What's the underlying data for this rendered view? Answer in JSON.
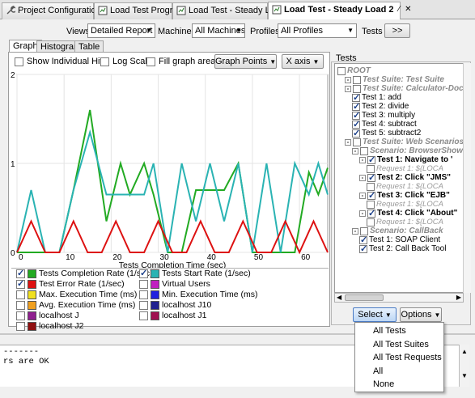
{
  "editor_tabs": [
    "Project Configuration",
    "Load Test Progress",
    "Load Test - Steady Load",
    "Load Test - Steady Load 2"
  ],
  "filter": {
    "views_label": "Views",
    "views_value": "Detailed Report",
    "machines_label": "Machines",
    "machines_value": "All Machines",
    "profiles_label": "Profiles",
    "profiles_value": "All Profiles",
    "tests_label": "Tests",
    "tests_button": ">>"
  },
  "subtabs": [
    "Graph",
    "Histogram",
    "Table"
  ],
  "graph_options": {
    "show_hits": "Show Individual Hits",
    "log_scale": "Log Scale",
    "fill_areas": "Fill graph areas",
    "graph_points": "Graph Points",
    "x_axis": "X axis"
  },
  "tests_panel_label": "Tests",
  "legend": [
    {
      "label": "Tests Completion Rate (1/sec)",
      "checked": true,
      "color": "#22aa22"
    },
    {
      "label": "Tests Start Rate (1/sec)",
      "checked": true,
      "color": "#2ab3b3"
    },
    {
      "label": "Test Error Rate (1/sec)",
      "checked": true,
      "color": "#dd1111"
    },
    {
      "label": "Virtual Users",
      "checked": false,
      "color": "#c020c0"
    },
    {
      "label": "Max. Execution Time (ms)",
      "checked": false,
      "color": "#f0e020"
    },
    {
      "label": "Min. Execution Time (ms)",
      "checked": false,
      "color": "#2020e0"
    },
    {
      "label": "Avg. Execution Time (ms)",
      "checked": false,
      "color": "#f0a020"
    },
    {
      "label": "localhost J10",
      "checked": false,
      "color": "#202090"
    },
    {
      "label": "localhost J",
      "checked": false,
      "color": "#902090"
    },
    {
      "label": "localhost J1",
      "checked": false,
      "color": "#a01050"
    },
    {
      "label": "localhost J2",
      "checked": false,
      "color": "#901010"
    }
  ],
  "chart_data": {
    "type": "line",
    "xlabel": "Tests Completion Time (sec)",
    "xlim": [
      0,
      66
    ],
    "ylim": [
      0,
      2
    ],
    "xticks": [
      0,
      10,
      20,
      30,
      40,
      50,
      60
    ],
    "yticks": [
      0,
      1,
      2
    ],
    "grid": true,
    "series": [
      {
        "name": "Tests Completion Rate (1/sec)",
        "color": "#22aa22",
        "x": [
          0,
          3,
          6,
          9,
          12,
          15.5,
          19,
          22,
          24,
          27,
          29,
          32,
          35,
          38,
          41,
          44,
          47,
          50,
          53,
          56,
          59,
          62,
          64,
          66
        ],
        "y": [
          0,
          0,
          0,
          0,
          0.7,
          1.6,
          0.35,
          1.0,
          0.65,
          1.0,
          0.65,
          0,
          0,
          0.7,
          0.7,
          0.7,
          1.0,
          0,
          0,
          0,
          0,
          0.9,
          0.65,
          0.95
        ]
      },
      {
        "name": "Tests Start Rate (1/sec)",
        "color": "#2ab3b3",
        "x": [
          0,
          3,
          6,
          9,
          12,
          15.5,
          19,
          22,
          24,
          27,
          29,
          32,
          35,
          38,
          41,
          44,
          47,
          50,
          53,
          56,
          59,
          62,
          64,
          66
        ],
        "y": [
          0,
          0.7,
          0,
          0,
          0.7,
          1.35,
          0.65,
          0.65,
          0.65,
          0.65,
          1.0,
          0,
          1.0,
          0.35,
          1.0,
          0.35,
          1.0,
          0,
          1.0,
          0,
          1.0,
          0.65,
          1.0,
          0.65
        ]
      },
      {
        "name": "Test Error Rate (1/sec)",
        "color": "#dd1111",
        "x": [
          0,
          3,
          6,
          9,
          12,
          15,
          18,
          21,
          24,
          27,
          30,
          33,
          36,
          39,
          42,
          45,
          48,
          51,
          54,
          57,
          60,
          63,
          66
        ],
        "y": [
          0,
          0.35,
          0,
          0,
          0.35,
          0,
          0,
          0.35,
          0,
          0,
          0.35,
          0,
          0,
          0.35,
          0,
          0,
          0.35,
          0,
          0,
          0.35,
          0,
          0.35,
          0
        ]
      }
    ]
  },
  "tree": [
    {
      "label": "ROOT",
      "style": "grey",
      "indent": 0,
      "checked": false,
      "expander": ""
    },
    {
      "label": "Test Suite: Test Suite",
      "style": "grey",
      "indent": 1,
      "checked": false,
      "expander": "-"
    },
    {
      "label": "Test Suite: Calculator-Doc",
      "style": "grey",
      "indent": 1,
      "checked": false,
      "expander": "-"
    },
    {
      "label": "Test 1: add",
      "style": "",
      "indent": 2,
      "checked": true,
      "expander": ""
    },
    {
      "label": "Test 2: divide",
      "style": "",
      "indent": 2,
      "checked": true,
      "expander": ""
    },
    {
      "label": "Test 3: multiply",
      "style": "",
      "indent": 2,
      "checked": true,
      "expander": ""
    },
    {
      "label": "Test 4: subtract",
      "style": "",
      "indent": 2,
      "checked": true,
      "expander": ""
    },
    {
      "label": "Test 5: subtract2",
      "style": "",
      "indent": 2,
      "checked": true,
      "expander": ""
    },
    {
      "label": "Test Suite: Web Scenarios",
      "style": "grey",
      "indent": 1,
      "checked": false,
      "expander": "-"
    },
    {
      "label": "Scenario: BrowserShow",
      "style": "grey",
      "indent": 2,
      "checked": false,
      "expander": "-"
    },
    {
      "label": "Test 1: Navigate to '",
      "style": "bold",
      "indent": 3,
      "checked": true,
      "expander": "-"
    },
    {
      "label": "Request 1: ${LOCA",
      "style": "req",
      "indent": 4,
      "checked": false,
      "expander": ""
    },
    {
      "label": "Test 2: Click \"JMS\"",
      "style": "bold",
      "indent": 3,
      "checked": true,
      "expander": "-"
    },
    {
      "label": "Request 1: ${LOCA",
      "style": "req",
      "indent": 4,
      "checked": false,
      "expander": ""
    },
    {
      "label": "Test 3: Click \"EJB\"",
      "style": "bold",
      "indent": 3,
      "checked": true,
      "expander": "-"
    },
    {
      "label": "Request 1: ${LOCA",
      "style": "req",
      "indent": 4,
      "checked": false,
      "expander": ""
    },
    {
      "label": "Test 4: Click \"About\"",
      "style": "bold",
      "indent": 3,
      "checked": true,
      "expander": "-"
    },
    {
      "label": "Request 1: ${LOCA",
      "style": "req",
      "indent": 4,
      "checked": false,
      "expander": ""
    },
    {
      "label": "Scenario: CallBack",
      "style": "grey",
      "indent": 2,
      "checked": false,
      "expander": "-"
    },
    {
      "label": "Test 1: SOAP Client",
      "style": "",
      "indent": 3,
      "checked": true,
      "expander": ""
    },
    {
      "label": "Test 2: Call Back Tool",
      "style": "",
      "indent": 3,
      "checked": true,
      "expander": ""
    }
  ],
  "bottom_buttons": {
    "select": "Select",
    "options": "Options"
  },
  "select_menu": [
    "All Tests",
    "All Test Suites",
    "All Test Requests",
    "All",
    "None"
  ],
  "console_lines": [
    "-------",
    "rs are OK"
  ]
}
